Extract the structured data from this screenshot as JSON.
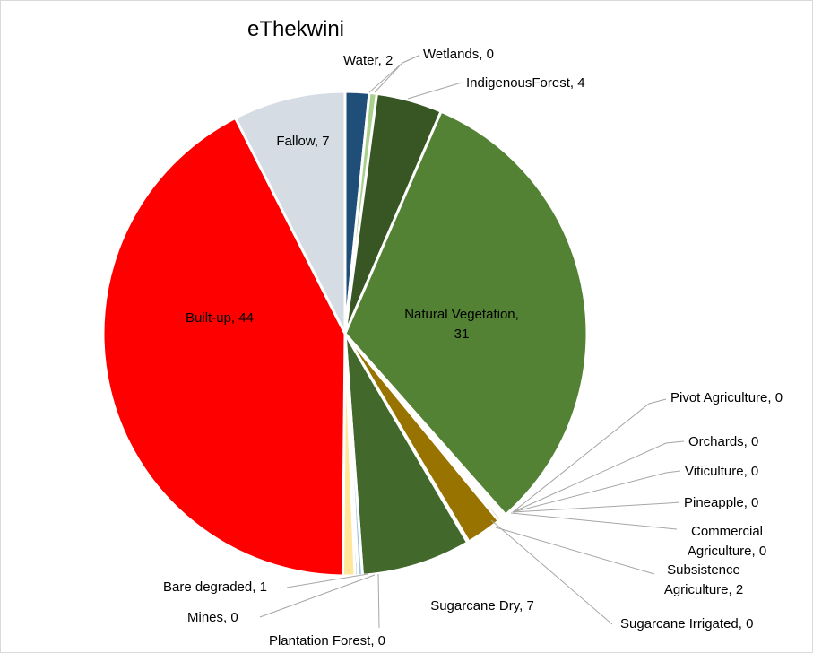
{
  "chart_data": {
    "type": "pie",
    "title": "eThekwini",
    "slices": [
      {
        "name": "Water",
        "value": 2,
        "percent": 1.6,
        "color": "#1f4e79",
        "label": [
          "Water, 2"
        ]
      },
      {
        "name": "Wetlands",
        "value": 0,
        "percent": 0.5,
        "color": "#a9d18e",
        "label": [
          "Wetlands, 0"
        ]
      },
      {
        "name": "IndigenousForest",
        "value": 4,
        "percent": 4.4,
        "color": "#375623",
        "label": [
          "IndigenousForest, 4"
        ]
      },
      {
        "name": "Natural Vegetation",
        "value": 31,
        "percent": 32.0,
        "color": "#548235",
        "label": [
          "Natural Vegetation,",
          "31"
        ]
      },
      {
        "name": "Pivot  Agriculture",
        "value": 0,
        "percent": 0.1,
        "color": "#70ad47",
        "label": [
          "Pivot  Agriculture, 0"
        ]
      },
      {
        "name": "Orchards",
        "value": 0,
        "percent": 0.1,
        "color": "#8faadc",
        "label": [
          "Orchards, 0"
        ]
      },
      {
        "name": "Viticulture",
        "value": 0,
        "percent": 0.1,
        "color": "#c00000",
        "label": [
          "Viticulture, 0"
        ]
      },
      {
        "name": "Pineapple",
        "value": 0,
        "percent": 0.1,
        "color": "#ffc000",
        "label": [
          "Pineapple, 0"
        ]
      },
      {
        "name": "Commercial Agriculture",
        "value": 0,
        "percent": 0.2,
        "color": "#9e480e",
        "label": [
          "Commercial",
          "Agriculture, 0"
        ]
      },
      {
        "name": "Subsistence Agriculture",
        "value": 2,
        "percent": 2.4,
        "color": "#997300",
        "label": [
          "Subsistence",
          "Agriculture, 2"
        ]
      },
      {
        "name": "Sugarcane Irrigated",
        "value": 0,
        "percent": 0.1,
        "color": "#43682b",
        "label": [
          "Sugarcane Irrigated, 0"
        ]
      },
      {
        "name": "Sugarcane Dry",
        "value": 7,
        "percent": 7.3,
        "color": "#43682b",
        "label": [
          "Sugarcane Dry, 7"
        ]
      },
      {
        "name": "Plantation Forest",
        "value": 0,
        "percent": 0.3,
        "color": "#9dc3e6",
        "label": [
          "Plantation Forest, 0"
        ]
      },
      {
        "name": "Mines",
        "value": 0,
        "percent": 0.2,
        "color": "#2e75b6",
        "label": [
          "Mines, 0"
        ]
      },
      {
        "name": "Bare degraded",
        "value": 1,
        "percent": 0.8,
        "color": "#ffe699",
        "label": [
          "Bare degraded, 1"
        ]
      },
      {
        "name": "Built-up",
        "value": 44,
        "percent": 42.4,
        "color": "#ff0000",
        "label": [
          "Built-up, 44"
        ]
      },
      {
        "name": "Fallow",
        "value": 7,
        "percent": 7.5,
        "color": "#d6dce4",
        "label": [
          "Fallow, 7"
        ]
      }
    ]
  }
}
